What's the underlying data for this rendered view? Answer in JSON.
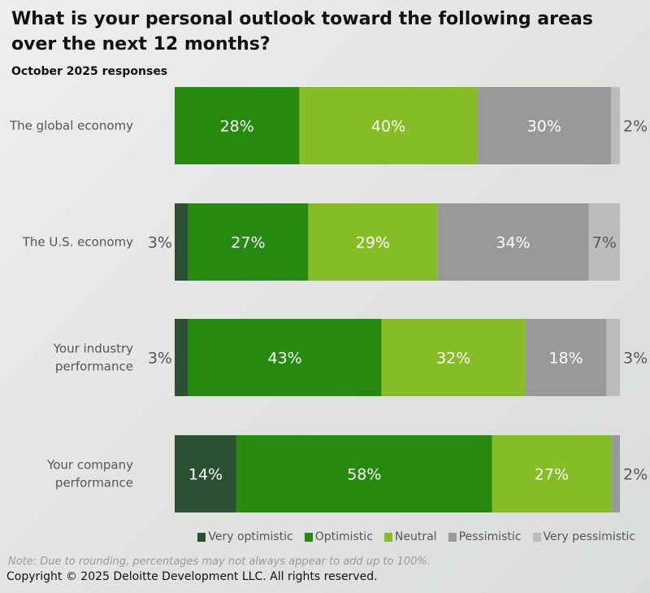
{
  "chart_data": {
    "type": "bar",
    "orientation": "horizontal",
    "stacked": true,
    "title": "What is your personal outlook toward the following areas over the next 12 months?",
    "subtitle": "October 2025 responses",
    "categories": [
      "The global economy",
      "The U.S. economy",
      "Your industry performance",
      "Your company performance"
    ],
    "series": [
      {
        "name": "Very optimistic",
        "color": "#2b5034",
        "values": [
          0,
          3,
          3,
          14
        ]
      },
      {
        "name": "Optimistic",
        "color": "#268a10",
        "values": [
          28,
          27,
          43,
          58
        ]
      },
      {
        "name": "Neutral",
        "color": "#86bc25",
        "values": [
          40,
          29,
          32,
          27
        ]
      },
      {
        "name": "Pessimistic",
        "color": "#97999b",
        "values": [
          30,
          34,
          18,
          2
        ]
      },
      {
        "name": "Very pessimistic",
        "color": "#bbbcbc",
        "values": [
          2,
          7,
          3,
          0
        ]
      }
    ],
    "unit": "%",
    "legend": "bottom-right",
    "grid": false
  },
  "note": "Note: Due to rounding, percentages may not always appear to add up to 100%.",
  "copyright": "Copyright © 2025 Deloitte Development LLC. All rights reserved."
}
